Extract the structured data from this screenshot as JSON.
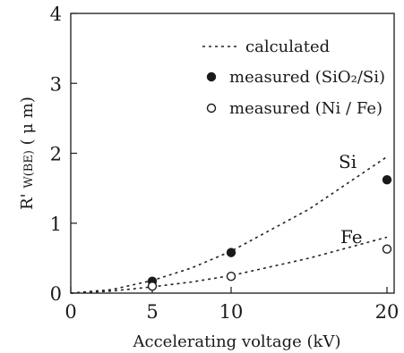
{
  "chart_data": {
    "type": "scatter",
    "title": "",
    "xlabel": "Accelerating voltage  (kV)",
    "ylabel_main": "R' ",
    "ylabel_sub": "W(BE)",
    "ylabel_unit": " ( μ m)",
    "x_ticks": [
      "0",
      "5",
      "10",
      "20"
    ],
    "y_ticks": [
      "0",
      "1",
      "2",
      "3",
      "4"
    ],
    "xlim": [
      0,
      20
    ],
    "ylim": [
      0,
      4
    ],
    "x_scale": "compressed: 0, 5, 10, 20 at increasing spacing",
    "grid": false,
    "legend_position": "top-right",
    "legend": [
      {
        "marker": "dashed-line",
        "label": "calculated"
      },
      {
        "marker": "filled-circle",
        "label": "measured (SiO₂/Si)"
      },
      {
        "marker": "open-circle",
        "label": "measured (Ni / Fe)"
      }
    ],
    "series": [
      {
        "name": "Si",
        "kind": "calculated",
        "points": [
          [
            0,
            0
          ],
          [
            2.5,
            0.05
          ],
          [
            5,
            0.18
          ],
          [
            7.5,
            0.36
          ],
          [
            10,
            0.6
          ],
          [
            15,
            1.2
          ],
          [
            20,
            1.95
          ]
        ]
      },
      {
        "name": "Fe",
        "kind": "calculated",
        "points": [
          [
            0,
            0
          ],
          [
            2.5,
            0.03
          ],
          [
            5,
            0.09
          ],
          [
            7.5,
            0.16
          ],
          [
            10,
            0.25
          ],
          [
            15,
            0.5
          ],
          [
            20,
            0.8
          ]
        ]
      },
      {
        "name": "measured (SiO₂/Si)",
        "kind": "measured-filled",
        "points": [
          [
            5,
            0.17
          ],
          [
            10,
            0.58
          ],
          [
            20,
            1.62
          ]
        ]
      },
      {
        "name": "measured (Ni / Fe)",
        "kind": "measured-open",
        "points": [
          [
            5,
            0.1
          ],
          [
            10,
            0.24
          ],
          [
            20,
            0.63
          ]
        ]
      }
    ],
    "annotations": [
      {
        "text": "Si",
        "near": "upper calculated curve"
      },
      {
        "text": "Fe",
        "near": "lower calculated curve"
      }
    ]
  }
}
